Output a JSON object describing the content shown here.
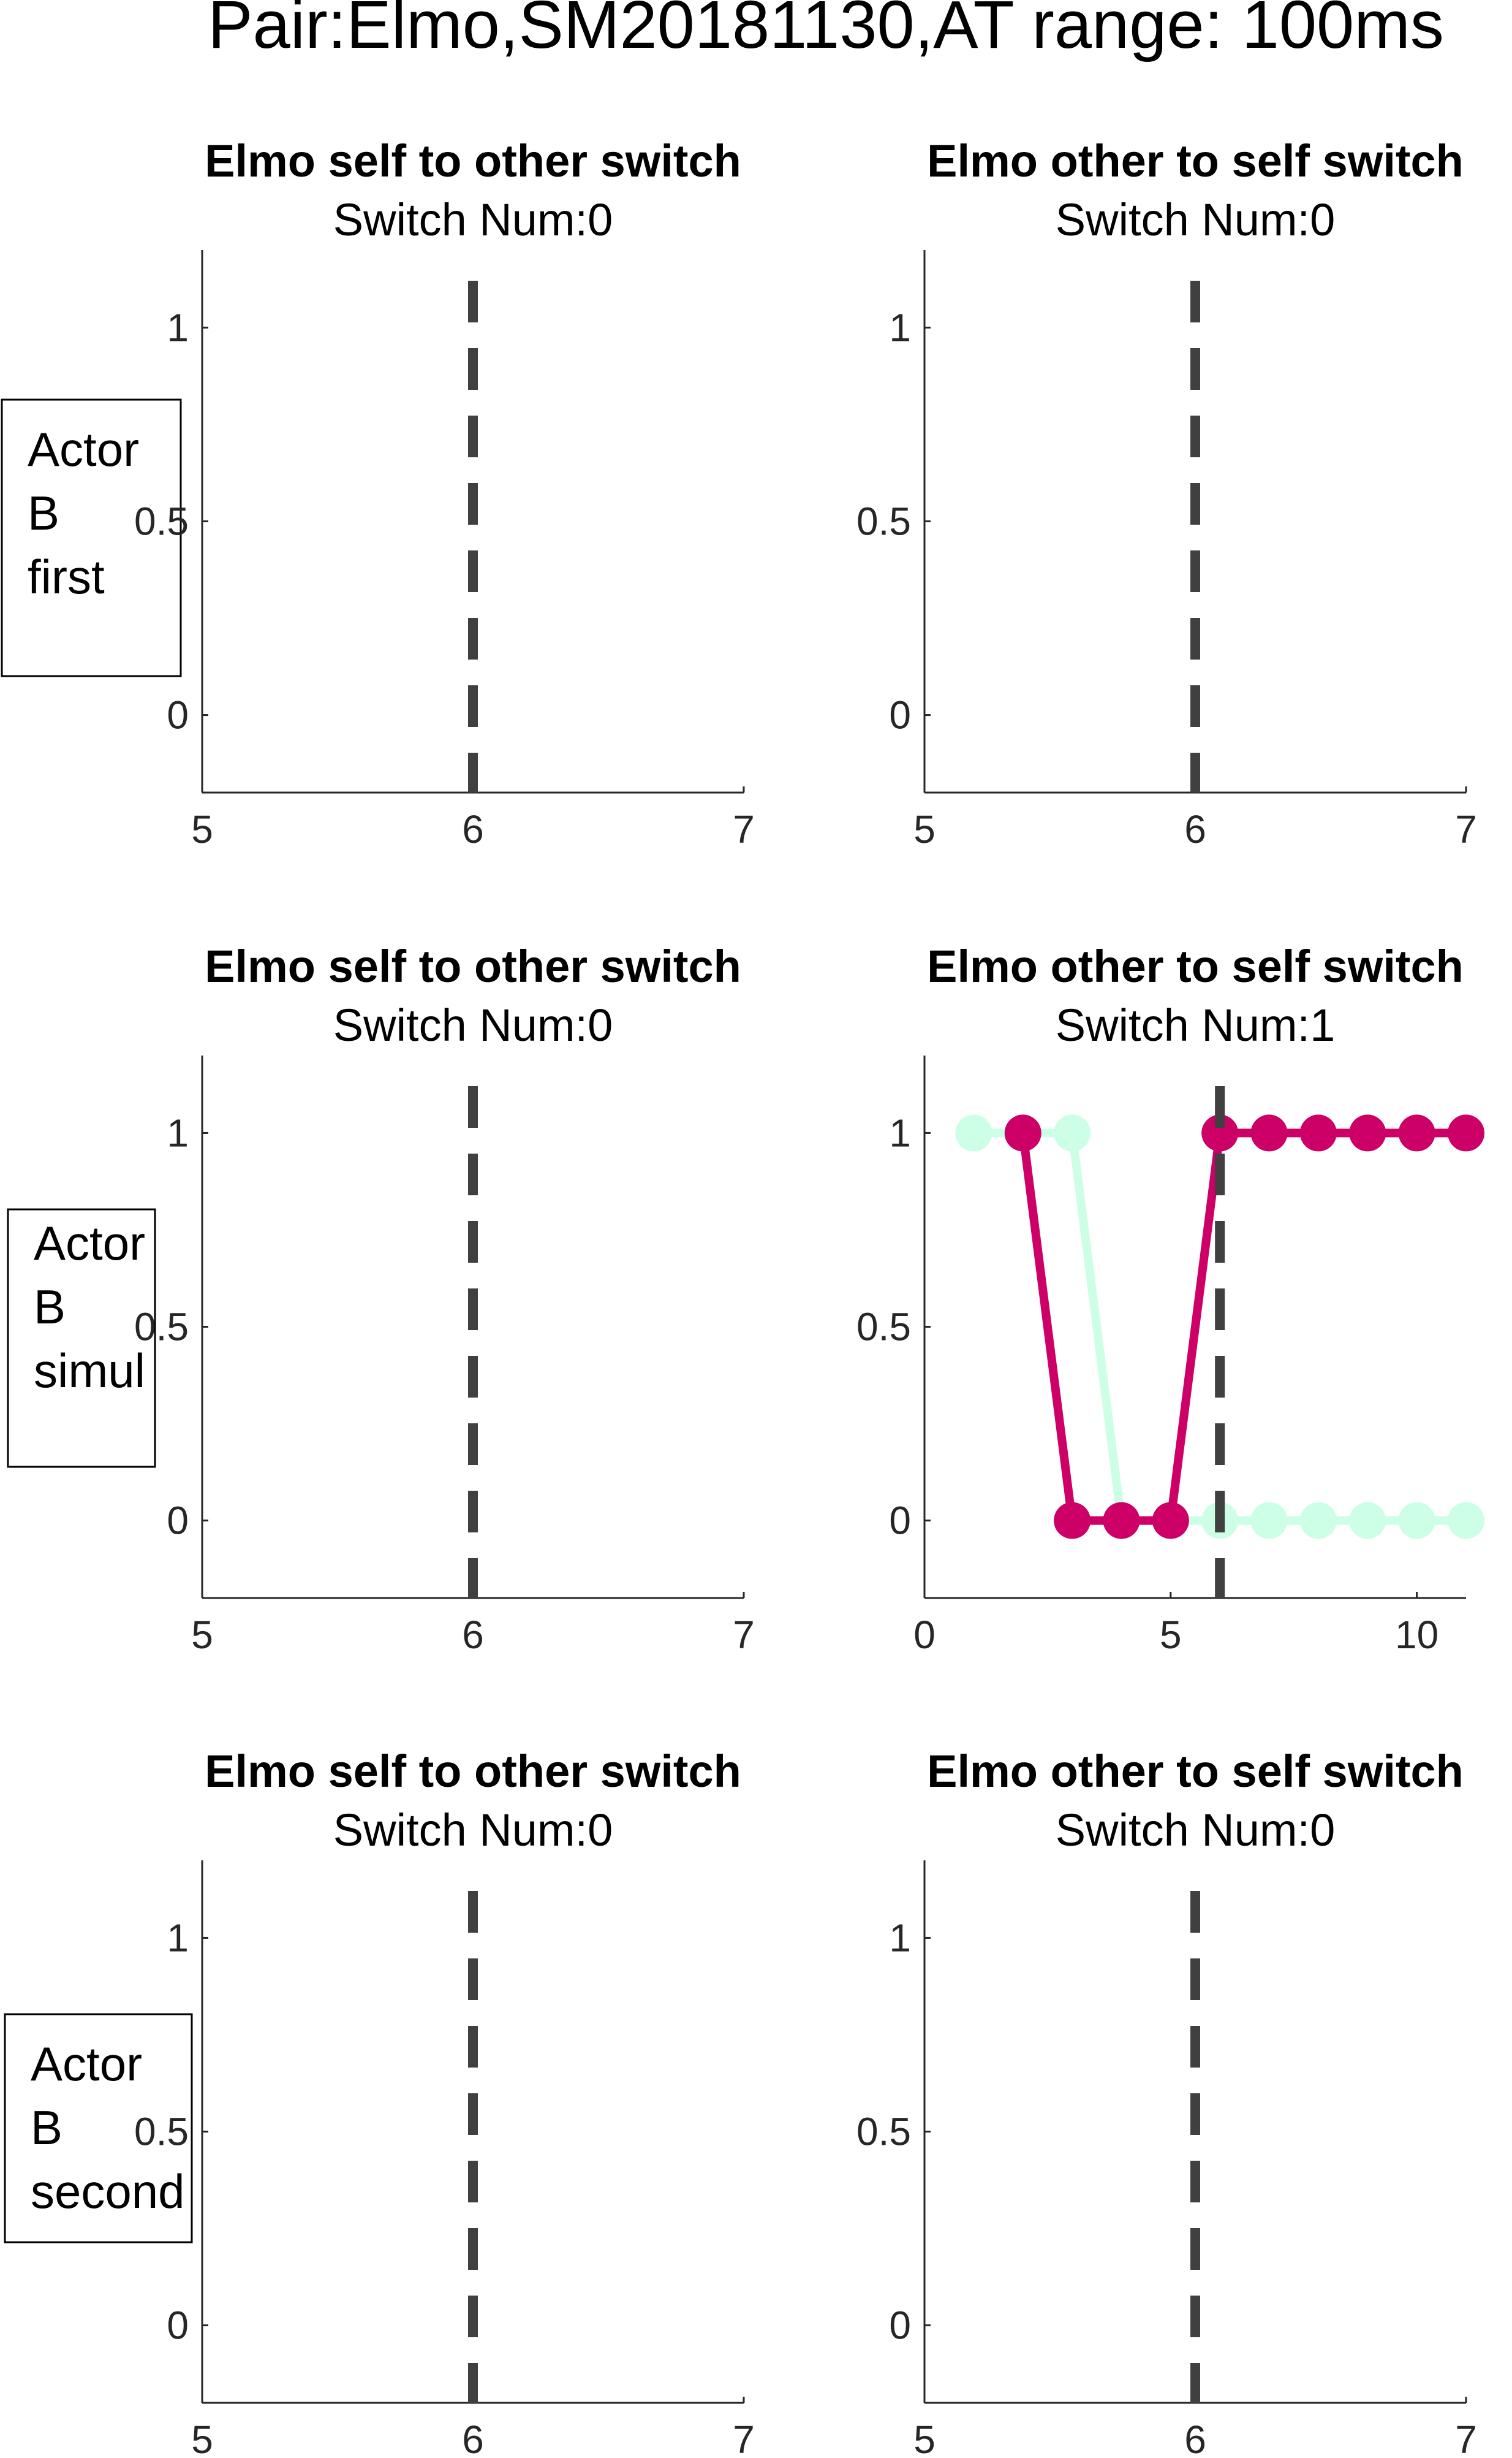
{
  "suptitle": "Pair:Elmo,SM20181130,AT range: 100ms",
  "colors": {
    "series_a": "#cc0066",
    "series_b": "#ccffe6",
    "vline": "#404040",
    "axis": "#262626"
  },
  "row_labels": [
    [
      "Actor",
      "B",
      "first"
    ],
    [
      "Actor",
      "B",
      "simul"
    ],
    [
      "Actor",
      "B",
      "second"
    ]
  ],
  "chart_data": [
    {
      "type": "line",
      "title": "Elmo self to other switch",
      "subtitle": "Switch Num:0",
      "xlim": [
        5,
        7
      ],
      "ylim": [
        -0.2,
        1.2
      ],
      "xticks": [
        5,
        6,
        7
      ],
      "yticks": [
        0,
        0.5,
        1
      ],
      "xtick_labels": [
        "5",
        "6",
        "7"
      ],
      "ytick_labels": [
        "0",
        "0.5",
        "1"
      ],
      "grid": false,
      "vline_x": 6,
      "series": []
    },
    {
      "type": "line",
      "title": "Elmo other to self switch",
      "subtitle": "Switch Num:0",
      "xlim": [
        5,
        7
      ],
      "ylim": [
        -0.2,
        1.2
      ],
      "xticks": [
        5,
        6,
        7
      ],
      "yticks": [
        0,
        0.5,
        1
      ],
      "xtick_labels": [
        "5",
        "6",
        "7"
      ],
      "ytick_labels": [
        "0",
        "0.5",
        "1"
      ],
      "grid": false,
      "vline_x": 6,
      "series": []
    },
    {
      "type": "line",
      "title": "Elmo self to other switch",
      "subtitle": "Switch Num:0",
      "xlim": [
        5,
        7
      ],
      "ylim": [
        -0.2,
        1.2
      ],
      "xticks": [
        5,
        6,
        7
      ],
      "yticks": [
        0,
        0.5,
        1
      ],
      "xtick_labels": [
        "5",
        "6",
        "7"
      ],
      "ytick_labels": [
        "0",
        "0.5",
        "1"
      ],
      "grid": false,
      "vline_x": 6,
      "series": []
    },
    {
      "type": "line",
      "title": "Elmo other to self switch",
      "subtitle": "Switch Num:1",
      "xlim": [
        0,
        11
      ],
      "ylim": [
        -0.2,
        1.2
      ],
      "xticks": [
        0,
        5,
        10
      ],
      "yticks": [
        0,
        0.5,
        1
      ],
      "xtick_labels": [
        "0",
        "5",
        "10"
      ],
      "ytick_labels": [
        "0",
        "0.5",
        "1"
      ],
      "grid": false,
      "vline_x": 6,
      "series": [
        {
          "color": "#ccffe6",
          "x": [
            1,
            2,
            3,
            4,
            5,
            6,
            7,
            8,
            9,
            10,
            11
          ],
          "y": [
            1,
            1,
            1,
            0,
            0,
            0,
            0,
            0,
            0,
            0,
            0
          ]
        },
        {
          "color": "#cc0066",
          "x": [
            2,
            3,
            4,
            5,
            6,
            7,
            8,
            9,
            10,
            11
          ],
          "y": [
            1,
            0,
            0,
            0,
            1,
            1,
            1,
            1,
            1,
            1
          ]
        }
      ]
    },
    {
      "type": "line",
      "title": "Elmo self to other switch",
      "subtitle": "Switch Num:0",
      "xlim": [
        5,
        7
      ],
      "ylim": [
        -0.2,
        1.2
      ],
      "xticks": [
        5,
        6,
        7
      ],
      "yticks": [
        0,
        0.5,
        1
      ],
      "xtick_labels": [
        "5",
        "6",
        "7"
      ],
      "ytick_labels": [
        "0",
        "0.5",
        "1"
      ],
      "grid": false,
      "vline_x": 6,
      "series": []
    },
    {
      "type": "line",
      "title": "Elmo other to self switch",
      "subtitle": "Switch Num:0",
      "xlim": [
        5,
        7
      ],
      "ylim": [
        -0.2,
        1.2
      ],
      "xticks": [
        5,
        6,
        7
      ],
      "yticks": [
        0,
        0.5,
        1
      ],
      "xtick_labels": [
        "5",
        "6",
        "7"
      ],
      "ytick_labels": [
        "0",
        "0.5",
        "1"
      ],
      "grid": false,
      "vline_x": 6,
      "series": []
    }
  ]
}
